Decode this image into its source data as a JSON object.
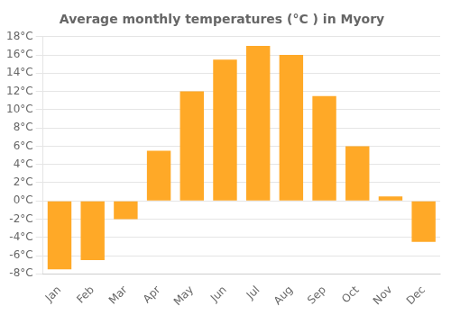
{
  "chart_data": {
    "type": "bar",
    "title": "Average monthly temperatures (°C ) in Myory",
    "categories": [
      "Jan",
      "Feb",
      "Mar",
      "Apr",
      "May",
      "Jun",
      "Jul",
      "Aug",
      "Sep",
      "Oct",
      "Nov",
      "Dec"
    ],
    "values": [
      -7.5,
      -6.5,
      -2.0,
      5.5,
      12.0,
      15.5,
      17.0,
      16.0,
      11.5,
      6.0,
      0.5,
      -4.5
    ],
    "color": "#FFA927",
    "ylim": [
      -8,
      18
    ],
    "yticks": [
      {
        "value": -8,
        "label": "-8°C"
      },
      {
        "value": -6,
        "label": "-6°C"
      },
      {
        "value": -4,
        "label": "-4°C"
      },
      {
        "value": -2,
        "label": "-2°C"
      },
      {
        "value": 0,
        "label": "0°C"
      },
      {
        "value": 2,
        "label": "2°C"
      },
      {
        "value": 4,
        "label": "4°C"
      },
      {
        "value": 6,
        "label": "6°C"
      },
      {
        "value": 8,
        "label": "8°C"
      },
      {
        "value": 10,
        "label": "10°C"
      },
      {
        "value": 12,
        "label": "12°C"
      },
      {
        "value": 14,
        "label": "14°C"
      },
      {
        "value": 16,
        "label": "16°C"
      },
      {
        "value": 18,
        "label": "18°C"
      }
    ],
    "grid": true
  }
}
